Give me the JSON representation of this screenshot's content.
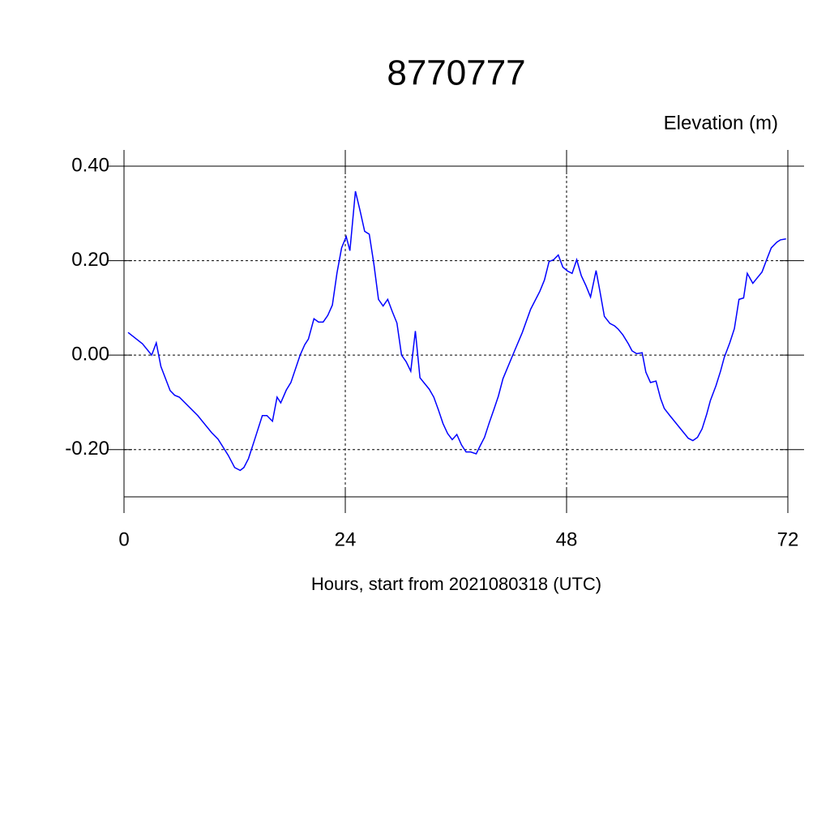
{
  "chart_data": {
    "type": "line",
    "title": "8770777",
    "ylabel": "Elevation (m)",
    "xlabel": "Hours, start from 2021080318 (UTC)",
    "x": [
      0.44,
      2.0,
      3.0,
      3.5,
      4.0,
      5.0,
      5.5,
      6.0,
      8.0,
      9.5,
      10.2,
      11.3,
      12.0,
      12.6,
      13.0,
      13.5,
      14.1,
      15.0,
      15.5,
      16.1,
      16.6,
      17.0,
      17.6,
      18.1,
      19.1,
      19.6,
      20.0,
      20.6,
      21.1,
      21.6,
      22.1,
      22.6,
      23.1,
      23.6,
      24.1,
      24.5,
      25.1,
      25.6,
      26.1,
      26.6,
      27.1,
      27.6,
      28.1,
      28.6,
      29.1,
      29.6,
      30.1,
      30.6,
      31.1,
      31.6,
      32.1,
      32.6,
      33.1,
      33.6,
      34.1,
      34.6,
      35.1,
      35.6,
      36.1,
      36.6,
      37.1,
      37.6,
      38.2,
      38.6,
      39.1,
      39.6,
      40.1,
      40.6,
      41.1,
      42.1,
      43.2,
      44.1,
      45.1,
      45.6,
      46.1,
      46.6,
      47.1,
      47.6,
      48.1,
      48.6,
      49.1,
      49.6,
      50.1,
      50.6,
      51.2,
      51.6,
      52.1,
      52.7,
      53.2,
      53.6,
      54.1,
      54.7,
      55.1,
      55.6,
      56.2,
      56.6,
      57.1,
      57.7,
      58.2,
      58.6,
      59.2,
      59.7,
      60.2,
      60.7,
      61.2,
      61.7,
      62.2,
      62.7,
      63.2,
      63.6,
      64.2,
      64.7,
      65.1,
      65.7,
      66.2,
      66.7,
      67.2,
      67.6,
      68.2,
      68.7,
      69.2,
      69.7,
      70.2,
      70.8,
      71.2,
      71.8
    ],
    "series": [
      {
        "color": "#0000ff",
        "values": [
          0.048,
          0.024,
          0.0,
          0.026,
          -0.024,
          -0.075,
          -0.085,
          -0.089,
          -0.128,
          -0.164,
          -0.178,
          -0.212,
          -0.238,
          -0.244,
          -0.238,
          -0.219,
          -0.183,
          -0.128,
          -0.128,
          -0.14,
          -0.089,
          -0.101,
          -0.074,
          -0.058,
          0.0,
          0.022,
          0.034,
          0.077,
          0.07,
          0.07,
          0.084,
          0.106,
          0.174,
          0.227,
          0.251,
          0.221,
          0.347,
          0.306,
          0.262,
          0.256,
          0.193,
          0.118,
          0.104,
          0.118,
          0.092,
          0.068,
          0.0,
          -0.014,
          -0.034,
          0.051,
          -0.048,
          -0.06,
          -0.072,
          -0.089,
          -0.116,
          -0.145,
          -0.166,
          -0.179,
          -0.168,
          -0.19,
          -0.205,
          -0.205,
          -0.209,
          -0.193,
          -0.174,
          -0.144,
          -0.116,
          -0.087,
          -0.05,
          -0.003,
          0.048,
          0.097,
          0.135,
          0.159,
          0.198,
          0.202,
          0.212,
          0.186,
          0.178,
          0.173,
          0.202,
          0.168,
          0.147,
          0.123,
          0.179,
          0.137,
          0.082,
          0.067,
          0.062,
          0.055,
          0.043,
          0.024,
          0.009,
          0.003,
          0.005,
          -0.036,
          -0.058,
          -0.055,
          -0.092,
          -0.113,
          -0.128,
          -0.14,
          -0.152,
          -0.164,
          -0.176,
          -0.181,
          -0.174,
          -0.156,
          -0.125,
          -0.096,
          -0.065,
          -0.034,
          -0.005,
          0.026,
          0.056,
          0.118,
          0.121,
          0.173,
          0.152,
          0.164,
          0.176,
          0.202,
          0.227,
          0.239,
          0.244,
          0.246
        ]
      }
    ],
    "xlim": [
      0,
      72
    ],
    "xticks": [
      0,
      24,
      48,
      72
    ],
    "ylim": [
      -0.3,
      0.4
    ],
    "yticks": [
      {
        "value": 0.4,
        "label": "0.40"
      },
      {
        "value": 0.2,
        "label": "0.20"
      },
      {
        "value": 0,
        "label": "0.00"
      },
      {
        "value": -0.2,
        "label": "-0.20"
      }
    ],
    "grid": true
  }
}
